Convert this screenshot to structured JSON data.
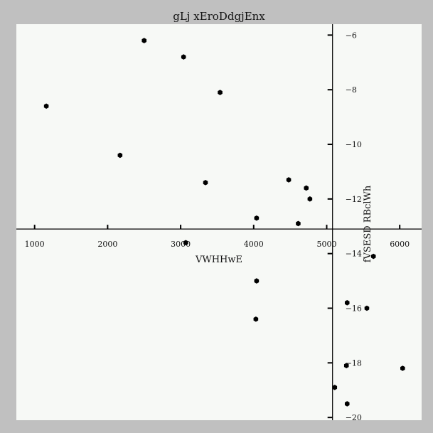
{
  "colors": {
    "outer_background": "#c0c0c0",
    "plot_background": "#f7f9f6",
    "marker": "#000000"
  },
  "chart_data": {
    "type": "scatter",
    "title": "gLj xEroDdgjEnx",
    "xlabel": "VWHHwE",
    "ylabel": "fVSESD RBclWh",
    "xlim": [
      750,
      6300
    ],
    "ylim": [
      -20.1,
      -5.6
    ],
    "x_ticks": [
      1000,
      2000,
      3000,
      4000,
      5000,
      6000
    ],
    "y_ticks": [
      -6,
      -8,
      -10,
      -12,
      -14,
      -16,
      -18,
      -20
    ],
    "x_tick_labels": [
      "1000",
      "2000",
      "3000",
      "4000",
      "5000",
      "6000"
    ],
    "y_tick_labels": [
      "−6",
      "−8",
      "−10",
      "−12",
      "−14",
      "−16",
      "−18",
      "−20"
    ],
    "x_axis_crosses_y_at": -13.1,
    "y_axis_crosses_x_at": 5080,
    "grid": false,
    "marker": "hexagon",
    "points": [
      {
        "x": 1160,
        "y": -8.6
      },
      {
        "x": 2170,
        "y": -10.4
      },
      {
        "x": 2500,
        "y": -6.2
      },
      {
        "x": 3040,
        "y": -6.8
      },
      {
        "x": 3540,
        "y": -8.1
      },
      {
        "x": 3340,
        "y": -11.4
      },
      {
        "x": 3070,
        "y": -13.6
      },
      {
        "x": 4040,
        "y": -12.7
      },
      {
        "x": 4040,
        "y": -15.0
      },
      {
        "x": 4030,
        "y": -16.4
      },
      {
        "x": 4480,
        "y": -11.3
      },
      {
        "x": 4610,
        "y": -12.9
      },
      {
        "x": 4720,
        "y": -11.6
      },
      {
        "x": 4770,
        "y": -12.0
      },
      {
        "x": 5110,
        "y": -18.9
      },
      {
        "x": 5280,
        "y": -19.5
      },
      {
        "x": 5280,
        "y": -15.8
      },
      {
        "x": 5270,
        "y": -18.1
      },
      {
        "x": 5550,
        "y": -16.0
      },
      {
        "x": 5640,
        "y": -14.1
      },
      {
        "x": 6040,
        "y": -18.2
      }
    ]
  }
}
